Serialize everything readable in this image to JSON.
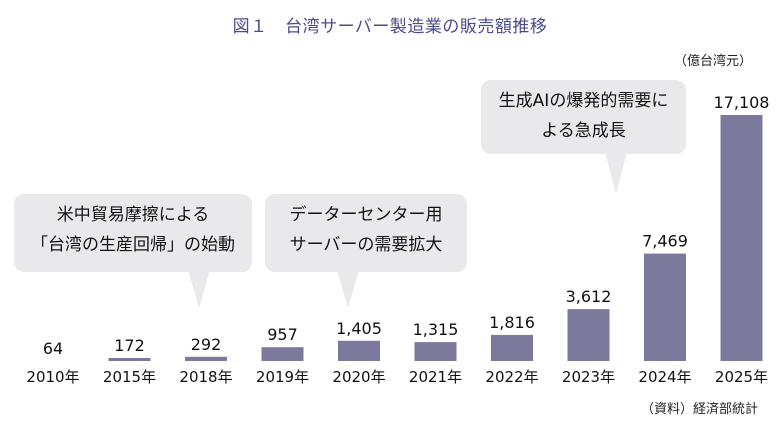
{
  "title": "図１　台湾サーバー製造業の販売額推移",
  "unit_label": "（億台湾元）",
  "source_label": "（資料）経済部統計",
  "colors": {
    "bar": "#7b7a9c",
    "title": "#4a4c8e",
    "callout_bg": "#e9e9eb"
  },
  "callouts": [
    {
      "lines": [
        "米中貿易摩擦による",
        "「台湾の生産回帰」の始動"
      ]
    },
    {
      "lines": [
        "データーセンター用",
        "サーバーの需要拡大"
      ]
    },
    {
      "lines": [
        "生成AIの爆発的需要に",
        "よる急成長"
      ]
    }
  ],
  "chart_data": {
    "type": "bar",
    "title": "図１　台湾サーバー製造業の販売額推移",
    "ylabel": "（億台湾元）",
    "categories": [
      "2010年",
      "2015年",
      "2018年",
      "2019年",
      "2020年",
      "2021年",
      "2022年",
      "2023年",
      "2024年",
      "2025年"
    ],
    "values": [
      64,
      172,
      292,
      957,
      1405,
      1315,
      1816,
      3612,
      7469,
      17108
    ],
    "value_labels": [
      "64",
      "172",
      "292",
      "957",
      "1,405",
      "1,315",
      "1,816",
      "3,612",
      "7,469",
      "17,108"
    ],
    "ylim": [
      0,
      17108
    ],
    "grid": false,
    "legend": "none"
  }
}
